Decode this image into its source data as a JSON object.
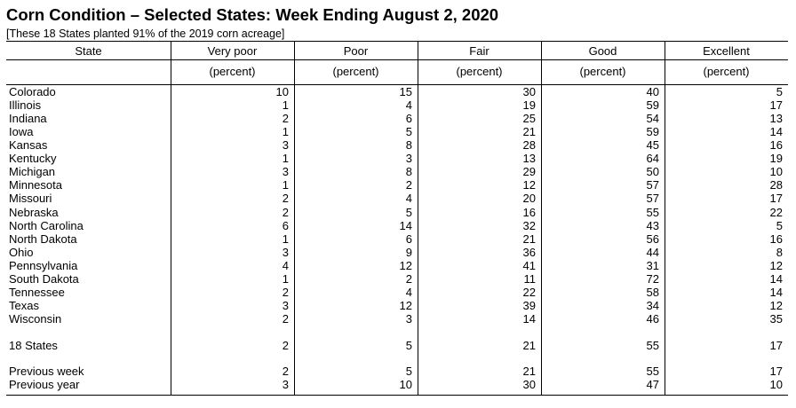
{
  "title": "Corn Condition – Selected States: Week Ending August 2, 2020",
  "subtitle": "[These 18 States planted 91% of the 2019 corn acreage]",
  "columns": [
    "State",
    "Very poor",
    "Poor",
    "Fair",
    "Good",
    "Excellent"
  ],
  "unit": "(percent)",
  "rows": [
    {
      "state": "Colorado",
      "values": [
        10,
        15,
        30,
        40,
        5
      ]
    },
    {
      "state": "Illinois",
      "values": [
        1,
        4,
        19,
        59,
        17
      ]
    },
    {
      "state": "Indiana",
      "values": [
        2,
        6,
        25,
        54,
        13
      ]
    },
    {
      "state": "Iowa",
      "values": [
        1,
        5,
        21,
        59,
        14
      ]
    },
    {
      "state": "Kansas",
      "values": [
        3,
        8,
        28,
        45,
        16
      ]
    },
    {
      "state": "Kentucky",
      "values": [
        1,
        3,
        13,
        64,
        19
      ]
    },
    {
      "state": "Michigan",
      "values": [
        3,
        8,
        29,
        50,
        10
      ]
    },
    {
      "state": "Minnesota",
      "values": [
        1,
        2,
        12,
        57,
        28
      ]
    },
    {
      "state": "Missouri",
      "values": [
        2,
        4,
        20,
        57,
        17
      ]
    },
    {
      "state": "Nebraska",
      "values": [
        2,
        5,
        16,
        55,
        22
      ]
    },
    {
      "state": "North Carolina",
      "values": [
        6,
        14,
        32,
        43,
        5
      ]
    },
    {
      "state": "North Dakota",
      "values": [
        1,
        6,
        21,
        56,
        16
      ]
    },
    {
      "state": "Ohio",
      "values": [
        3,
        9,
        36,
        44,
        8
      ]
    },
    {
      "state": "Pennsylvania",
      "values": [
        4,
        12,
        41,
        31,
        12
      ]
    },
    {
      "state": "South Dakota",
      "values": [
        1,
        2,
        11,
        72,
        14
      ]
    },
    {
      "state": "Tennessee",
      "values": [
        2,
        4,
        22,
        58,
        14
      ]
    },
    {
      "state": "Texas",
      "values": [
        3,
        12,
        39,
        34,
        12
      ]
    },
    {
      "state": "Wisconsin",
      "values": [
        2,
        3,
        14,
        46,
        35
      ]
    }
  ],
  "summary_rows": [
    {
      "state": "18 States",
      "values": [
        2,
        5,
        21,
        55,
        17
      ]
    },
    {
      "state": "Previous week",
      "values": [
        2,
        5,
        21,
        55,
        17
      ]
    },
    {
      "state": "Previous year",
      "values": [
        3,
        10,
        30,
        47,
        10
      ]
    }
  ]
}
